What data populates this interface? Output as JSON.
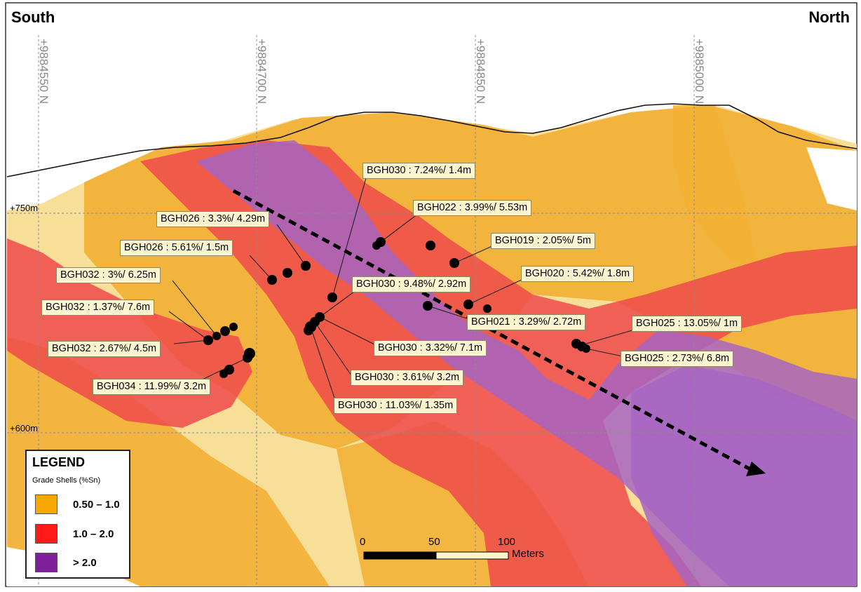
{
  "directions": {
    "left": "South",
    "right": "North"
  },
  "northings": [
    "+9884550 N",
    "+9884700 N",
    "+9884850 N",
    "+9885000 N"
  ],
  "elevations": [
    "+750m",
    "+600m"
  ],
  "intercepts": [
    "BGH030 : 7.24%/ 1.4m",
    "BGH022 : 3.99%/ 5.53m",
    "BGH026 : 3.3%/ 4.29m",
    "BGH019 : 2.05%/ 5m",
    "BGH026 : 5.61%/ 1.5m",
    "BGH032 : 3%/ 6.25m",
    "BGH020 : 5.42%/ 1.8m",
    "BGH030 : 9.48%/ 2.92m",
    "BGH032 : 1.37%/ 7.6m",
    "BGH021 : 3.29%/ 2.72m",
    "BGH025 : 13.05%/ 1m",
    "BGH032 : 2.67%/ 4.5m",
    "BGH030 : 3.32%/ 7.1m",
    "BGH025 : 2.73%/ 6.8m",
    "BGH034 : 11.99%/ 3.2m",
    "BGH030 : 3.61%/ 3.2m",
    "BGH030 : 11.03%/ 1.35m"
  ],
  "legend": {
    "title": "LEGEND",
    "subtitle": "Grade Shells (%Sn)",
    "items": [
      {
        "label": "0.50 – 1.0",
        "color": "#f7a800"
      },
      {
        "label": "1.0 – 2.0",
        "color": "#ff1a1a"
      },
      {
        "label": "> 2.0",
        "color": "#7f1f9a"
      }
    ]
  },
  "scale_bar": {
    "ticks": [
      "0",
      "50",
      "100"
    ],
    "unit": "Meters"
  },
  "colors": {
    "low_grade": "#f2b035",
    "mid_grade": "#ee4a4a",
    "high_grade": "#a765c2",
    "pale": "#f6dc8c"
  }
}
